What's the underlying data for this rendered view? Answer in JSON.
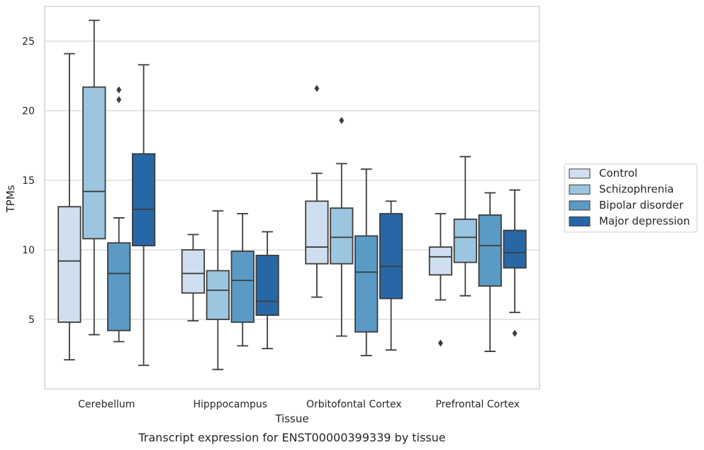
{
  "chart_data": {
    "type": "box",
    "caption": "Transcript expression for ENST00000399339 by tissue",
    "xlabel": "Tissue",
    "ylabel": "TPMs",
    "ylim": [
      0,
      27.5
    ],
    "yticks": [
      5,
      10,
      15,
      20,
      25
    ],
    "grid": true,
    "legend_position": "right",
    "categories": [
      "Cerebellum",
      "Hipppocampus",
      "Orbitofontal Cortex",
      "Prefrontal Cortex"
    ],
    "series": [
      {
        "name": "Control",
        "color": "#cfdff0",
        "boxes": [
          {
            "whislo": 2.1,
            "q1": 4.8,
            "med": 9.2,
            "q3": 13.1,
            "whishi": 24.1,
            "fliers": []
          },
          {
            "whislo": 4.9,
            "q1": 6.9,
            "med": 8.3,
            "q3": 10.0,
            "whishi": 11.1,
            "fliers": []
          },
          {
            "whislo": 6.6,
            "q1": 9.0,
            "med": 10.2,
            "q3": 13.5,
            "whishi": 15.5,
            "fliers": [
              21.6
            ]
          },
          {
            "whislo": 6.4,
            "q1": 8.2,
            "med": 9.5,
            "q3": 10.2,
            "whishi": 12.6,
            "fliers": [
              3.3
            ]
          }
        ]
      },
      {
        "name": "Schizophrenia",
        "color": "#9cc6df",
        "boxes": [
          {
            "whislo": 3.9,
            "q1": 10.8,
            "med": 14.2,
            "q3": 21.7,
            "whishi": 26.5,
            "fliers": []
          },
          {
            "whislo": 1.4,
            "q1": 5.0,
            "med": 7.1,
            "q3": 8.5,
            "whishi": 12.8,
            "fliers": []
          },
          {
            "whislo": 3.8,
            "q1": 9.0,
            "med": 10.9,
            "q3": 13.0,
            "whishi": 16.2,
            "fliers": [
              19.3
            ]
          },
          {
            "whislo": 6.7,
            "q1": 9.1,
            "med": 10.9,
            "q3": 12.2,
            "whishi": 16.7,
            "fliers": []
          }
        ]
      },
      {
        "name": "Bipolar disorder",
        "color": "#5a9ac5",
        "boxes": [
          {
            "whislo": 3.4,
            "q1": 4.2,
            "med": 8.3,
            "q3": 10.5,
            "whishi": 12.3,
            "fliers": [
              20.8,
              21.5
            ]
          },
          {
            "whislo": 3.1,
            "q1": 4.8,
            "med": 7.8,
            "q3": 9.9,
            "whishi": 12.6,
            "fliers": []
          },
          {
            "whislo": 2.4,
            "q1": 4.1,
            "med": 8.4,
            "q3": 11.0,
            "whishi": 15.8,
            "fliers": []
          },
          {
            "whislo": 2.7,
            "q1": 7.4,
            "med": 10.3,
            "q3": 12.5,
            "whishi": 14.1,
            "fliers": []
          }
        ]
      },
      {
        "name": "Major depression",
        "color": "#2867a6",
        "boxes": [
          {
            "whislo": 1.7,
            "q1": 10.3,
            "med": 12.9,
            "q3": 16.9,
            "whishi": 23.3,
            "fliers": []
          },
          {
            "whislo": 2.9,
            "q1": 5.3,
            "med": 6.3,
            "q3": 9.6,
            "whishi": 11.3,
            "fliers": []
          },
          {
            "whislo": 2.8,
            "q1": 6.5,
            "med": 8.8,
            "q3": 12.6,
            "whishi": 13.5,
            "fliers": []
          },
          {
            "whislo": 5.5,
            "q1": 8.7,
            "med": 9.8,
            "q3": 11.4,
            "whishi": 14.3,
            "fliers": [
              4.0
            ]
          }
        ]
      }
    ]
  }
}
